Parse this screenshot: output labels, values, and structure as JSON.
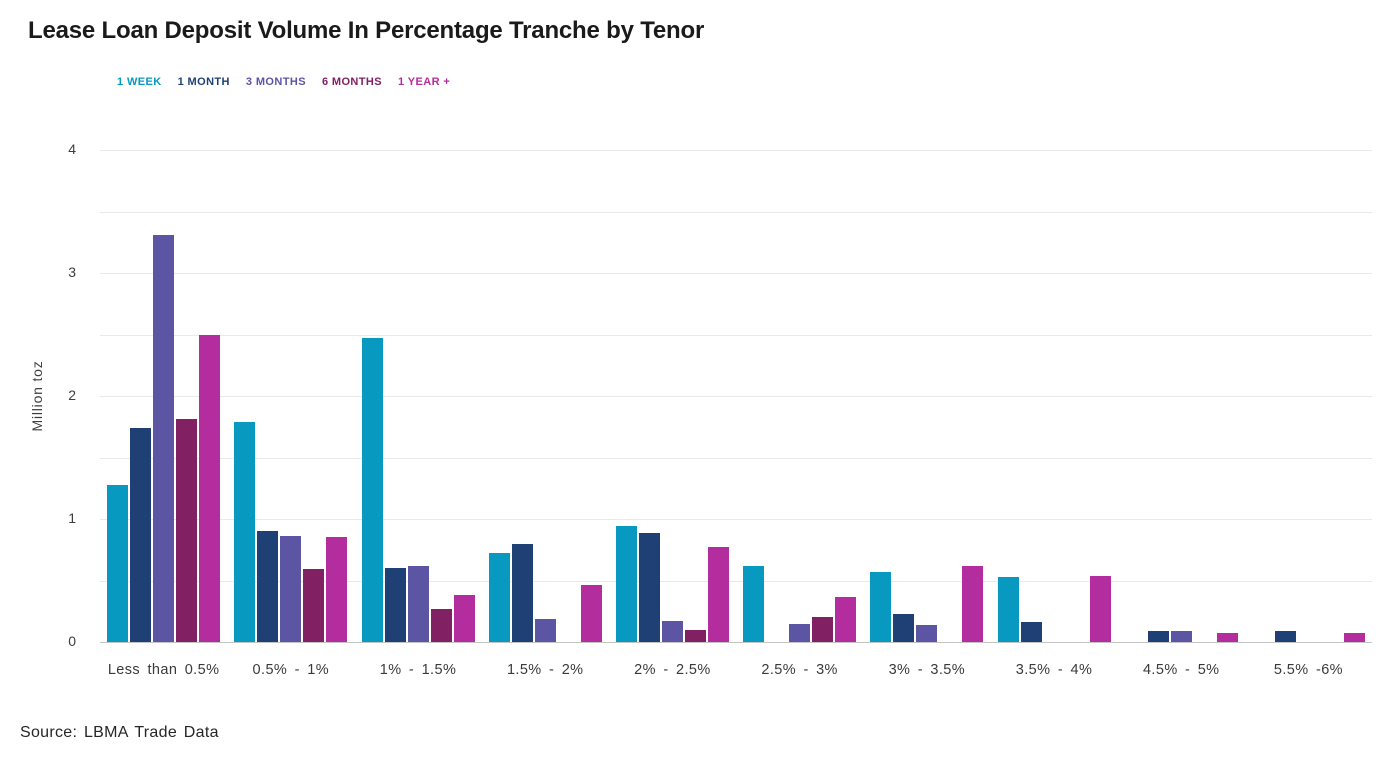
{
  "title": "Lease Loan Deposit Volume In Percentage Tranche by Tenor",
  "source": "Source: LBMA Trade Data",
  "chart_data": {
    "type": "bar",
    "title": "Lease Loan Deposit Volume In Percentage Tranche by Tenor",
    "xlabel": "",
    "ylabel": "Million toz",
    "ylim": [
      0,
      4
    ],
    "yticks": [
      0,
      1,
      2,
      3,
      4
    ],
    "grid": true,
    "grid_step": 0.5,
    "legend_position": "top",
    "gridline_color": "#e9e9e9",
    "axis_line_color": "#c4c4c4",
    "categories": [
      "Less than 0.5%",
      "0.5% - 1%",
      "1% - 1.5%",
      "1.5% - 2%",
      "2% - 2.5%",
      "2.5% - 3%",
      "3% - 3.5%",
      "3.5% - 4%",
      "4.5% - 5%",
      "5.5% -6%"
    ],
    "series": [
      {
        "name": "1 WEEK",
        "color": "#0799bf",
        "values": [
          1.28,
          1.79,
          2.47,
          0.72,
          0.94,
          0.62,
          0.57,
          0.53,
          0,
          0
        ]
      },
      {
        "name": "1 MONTH",
        "color": "#1f4075",
        "values": [
          1.74,
          0.9,
          0.6,
          0.8,
          0.89,
          0,
          0.23,
          0.16,
          0.09,
          0.09
        ]
      },
      {
        "name": "3 MONTHS",
        "color": "#5c55a4",
        "values": [
          3.31,
          0.86,
          0.62,
          0.19,
          0.17,
          0.15,
          0.14,
          0,
          0.09,
          0
        ]
      },
      {
        "name": "6 MONTHS",
        "color": "#822064",
        "values": [
          1.81,
          0.59,
          0.27,
          0,
          0.1,
          0.2,
          0,
          0,
          0,
          0
        ]
      },
      {
        "name": "1 YEAR +",
        "color": "#b32d9e",
        "values": [
          2.5,
          0.85,
          0.38,
          0.46,
          0.77,
          0.37,
          0.62,
          0.54,
          0.07,
          0.07
        ]
      }
    ]
  }
}
